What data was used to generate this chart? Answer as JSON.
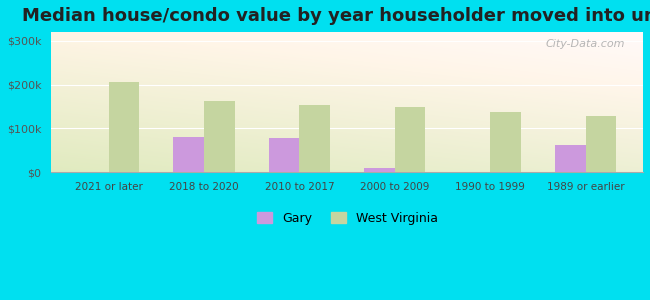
{
  "title": "Median house/condo value by year householder moved into unit",
  "categories": [
    "2021 or later",
    "2018 to 2020",
    "2010 to 2017",
    "2000 to 2009",
    "1990 to 1999",
    "1989 or earlier"
  ],
  "gary_values": [
    0,
    80000,
    78000,
    10000,
    0,
    62000
  ],
  "wv_values": [
    207000,
    163000,
    153000,
    148000,
    137000,
    128000
  ],
  "gary_color": "#cc99dd",
  "wv_color": "#c5d5a0",
  "background_outer": "#00e0f0",
  "yticks": [
    0,
    100000,
    200000,
    300000
  ],
  "ylim": [
    0,
    320000
  ],
  "bar_width": 0.32,
  "title_fontsize": 13,
  "legend_labels": [
    "Gary",
    "West Virginia"
  ],
  "watermark": "City-Data.com"
}
